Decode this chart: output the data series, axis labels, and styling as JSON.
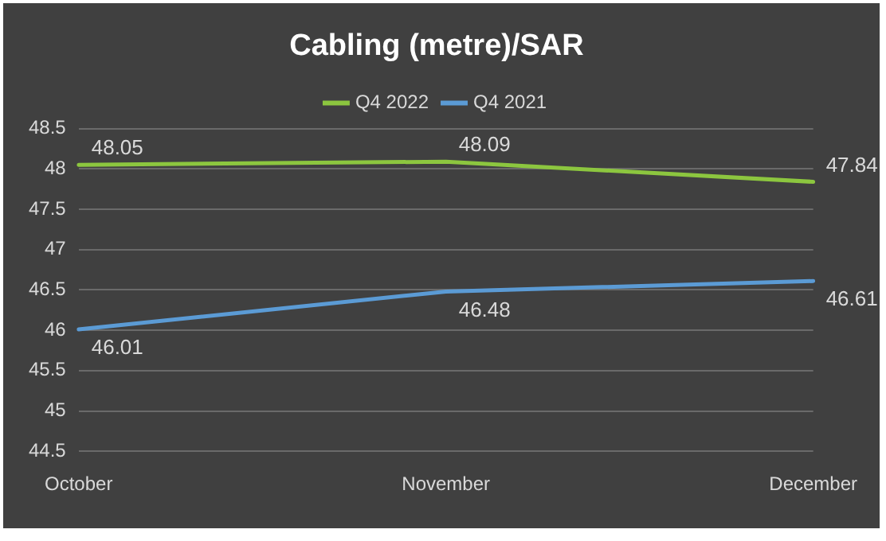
{
  "chart_data": {
    "type": "line",
    "title": "Cabling (metre)/SAR",
    "categories": [
      "October",
      "November",
      "December"
    ],
    "series": [
      {
        "name": "Q4 2022",
        "color": "#8cc63f",
        "values": [
          48.05,
          48.09,
          47.84
        ]
      },
      {
        "name": "Q4 2021",
        "color": "#5b9bd5",
        "values": [
          46.01,
          46.48,
          46.61
        ]
      }
    ],
    "ylim": [
      44.5,
      48.5
    ],
    "yticks": [
      44.5,
      45,
      45.5,
      46,
      46.5,
      47,
      47.5,
      48,
      48.5
    ],
    "grid": "y",
    "legend": "top",
    "marker": "none",
    "line_style": "solid",
    "data_labels": true
  }
}
